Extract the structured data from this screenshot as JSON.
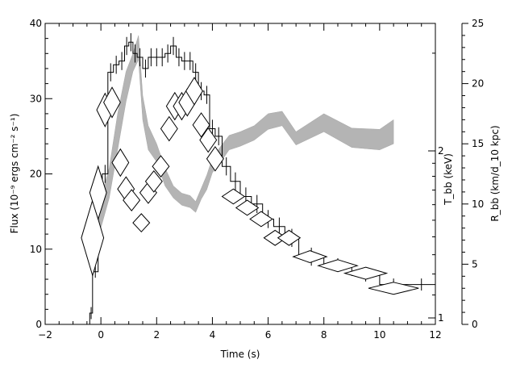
{
  "chart_data": {
    "type": "line",
    "xlabel": "Time (s)",
    "ylabel_left": "Flux (10⁻⁹ ergs cm⁻² s⁻¹)",
    "ylabel_right_temp": "T_bb (keV)",
    "ylabel_right_radius": "R_bb (km/d_10 kpc)",
    "xlim": [
      -2,
      12
    ],
    "ylim": [
      0,
      40
    ],
    "radius_lim": [
      0,
      25
    ],
    "temp_ticks": [
      1,
      2
    ],
    "x_ticks": [
      -2,
      0,
      2,
      4,
      6,
      8,
      10,
      12
    ],
    "y_ticks": [
      0,
      10,
      20,
      30,
      40
    ],
    "radius_ticks": [
      0,
      5,
      10,
      15,
      20,
      25
    ],
    "flux": {
      "bins": [
        [
          -0.4,
          -0.3,
          1.5
        ],
        [
          -0.3,
          -0.1,
          7
        ],
        [
          -0.1,
          0.05,
          17
        ],
        [
          0.05,
          0.25,
          20
        ],
        [
          0.25,
          0.45,
          33.5
        ],
        [
          0.45,
          0.65,
          34.5
        ],
        [
          0.65,
          0.85,
          35
        ],
        [
          0.85,
          1.0,
          37
        ],
        [
          1.0,
          1.15,
          37.5
        ],
        [
          1.15,
          1.3,
          36
        ],
        [
          1.3,
          1.5,
          35.5
        ],
        [
          1.5,
          1.7,
          34
        ],
        [
          1.7,
          1.9,
          35.5
        ],
        [
          1.9,
          2.1,
          35.5
        ],
        [
          2.1,
          2.3,
          35.5
        ],
        [
          2.3,
          2.5,
          36
        ],
        [
          2.5,
          2.7,
          37
        ],
        [
          2.7,
          2.9,
          35.5
        ],
        [
          2.9,
          3.1,
          35
        ],
        [
          3.1,
          3.3,
          35
        ],
        [
          3.3,
          3.5,
          33.5
        ],
        [
          3.5,
          3.7,
          31
        ],
        [
          3.7,
          3.9,
          30.5
        ],
        [
          3.9,
          4.1,
          26
        ],
        [
          4.1,
          4.35,
          25
        ],
        [
          4.35,
          4.65,
          21
        ],
        [
          4.65,
          5.0,
          19
        ],
        [
          5.0,
          5.4,
          17
        ],
        [
          5.4,
          5.8,
          16
        ],
        [
          5.8,
          6.2,
          14
        ],
        [
          6.2,
          6.6,
          13
        ],
        [
          6.6,
          7.1,
          11.5
        ],
        [
          7.1,
          8.0,
          9
        ],
        [
          8.0,
          9.0,
          8
        ],
        [
          9.0,
          10.0,
          6.5
        ],
        [
          10.0,
          11.0,
          5.3
        ],
        [
          11.0,
          12.0,
          5.3
        ]
      ]
    },
    "radius_band": [
      [
        -0.4,
        6.5,
        8.8
      ],
      [
        -0.2,
        7.0,
        9.5
      ],
      [
        0.0,
        8.0,
        10.5
      ],
      [
        0.3,
        10.5,
        13
      ],
      [
        0.6,
        14.5,
        17.5
      ],
      [
        0.9,
        18.5,
        21
      ],
      [
        1.15,
        21,
        22.5
      ],
      [
        1.35,
        22,
        24
      ],
      [
        1.5,
        17,
        19
      ],
      [
        1.7,
        14.5,
        16.5
      ],
      [
        2.0,
        13.5,
        15
      ],
      [
        2.3,
        11.5,
        13
      ],
      [
        2.6,
        10.5,
        11.5
      ],
      [
        2.9,
        9.9,
        10.9
      ],
      [
        3.2,
        9.7,
        10.7
      ],
      [
        3.4,
        9.3,
        10.2
      ],
      [
        3.6,
        10.4,
        11.3
      ],
      [
        3.8,
        11.2,
        12.4
      ],
      [
        4.0,
        12.6,
        13.8
      ],
      [
        4.3,
        13.5,
        14.8
      ],
      [
        4.6,
        14.5,
        15.7
      ],
      [
        5.0,
        14.8,
        16.0
      ],
      [
        5.5,
        15.3,
        16.5
      ],
      [
        6.0,
        16.2,
        17.5
      ],
      [
        6.5,
        16.5,
        17.7
      ],
      [
        7.0,
        14.9,
        16.0
      ],
      [
        8.0,
        16.0,
        17.5
      ],
      [
        9.0,
        14.7,
        16.3
      ],
      [
        10.0,
        14.5,
        16.2
      ],
      [
        10.5,
        15.0,
        17.0
      ]
    ],
    "temperature_points": [
      [
        -0.3,
        11.5,
        0.4,
        5
      ],
      [
        -0.1,
        17.5,
        0.3,
        3.5
      ],
      [
        0.15,
        28.5,
        0.3,
        2.2
      ],
      [
        0.4,
        29.5,
        0.3,
        2
      ],
      [
        0.7,
        21.5,
        0.3,
        1.8
      ],
      [
        0.9,
        18,
        0.3,
        1.6
      ],
      [
        1.1,
        16.5,
        0.3,
        1.4
      ],
      [
        1.45,
        13.5,
        0.3,
        1.2
      ],
      [
        1.7,
        17.5,
        0.3,
        1.4
      ],
      [
        1.9,
        19,
        0.3,
        1.4
      ],
      [
        2.15,
        21,
        0.3,
        1.4
      ],
      [
        2.45,
        26,
        0.3,
        1.6
      ],
      [
        2.65,
        29,
        0.3,
        1.8
      ],
      [
        2.9,
        29,
        0.3,
        1.8
      ],
      [
        3.1,
        29.5,
        0.3,
        1.8
      ],
      [
        3.35,
        31,
        0.3,
        1.8
      ],
      [
        3.6,
        26.5,
        0.3,
        1.6
      ],
      [
        3.85,
        24.5,
        0.3,
        1.6
      ],
      [
        4.1,
        22,
        0.3,
        1.6
      ],
      [
        4.75,
        17,
        0.4,
        1
      ],
      [
        5.25,
        15.5,
        0.4,
        1
      ],
      [
        5.75,
        14,
        0.4,
        1
      ],
      [
        6.25,
        11.5,
        0.4,
        1
      ],
      [
        6.75,
        11.5,
        0.4,
        1
      ],
      [
        7.5,
        9,
        0.6,
        0.8
      ],
      [
        8.5,
        7.8,
        0.7,
        0.8
      ],
      [
        9.5,
        6.8,
        0.75,
        0.8
      ],
      [
        10.5,
        4.8,
        0.9,
        0.8
      ]
    ]
  }
}
